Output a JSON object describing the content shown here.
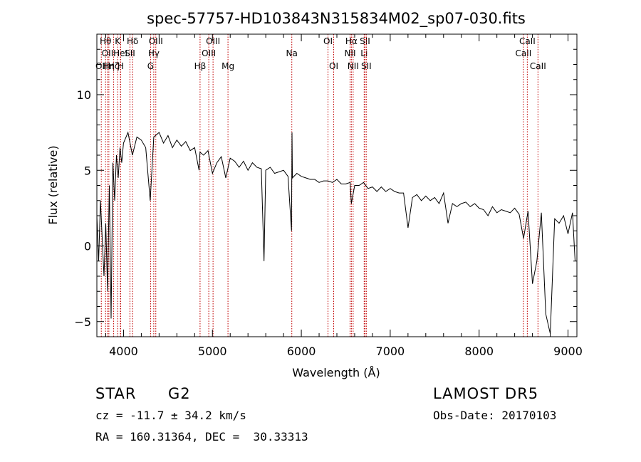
{
  "chart_data": {
    "type": "line",
    "title": "spec-57757-HD103843N315834M02_sp07-030.fits",
    "xlabel": "Wavelength (Å)",
    "ylabel": "Flux (relative)",
    "xlim": [
      3700,
      9100
    ],
    "ylim": [
      -6,
      14
    ],
    "xticks": [
      4000,
      5000,
      6000,
      7000,
      8000,
      9000
    ],
    "yticks": [
      -5,
      0,
      5,
      10
    ],
    "line_color": "#000000",
    "marker_color": "#c00000",
    "spectrum": {
      "name": "",
      "x": [
        3700,
        3720,
        3740,
        3760,
        3780,
        3800,
        3820,
        3840,
        3860,
        3880,
        3900,
        3920,
        3940,
        3960,
        3980,
        4000,
        4050,
        4100,
        4150,
        4200,
        4250,
        4300,
        4340,
        4400,
        4450,
        4500,
        4550,
        4600,
        4650,
        4700,
        4750,
        4800,
        4850,
        4860,
        4900,
        4950,
        5000,
        5050,
        5100,
        5150,
        5200,
        5250,
        5300,
        5350,
        5400,
        5450,
        5500,
        5550,
        5580,
        5600,
        5650,
        5700,
        5750,
        5800,
        5850,
        5890,
        5895,
        5900,
        5950,
        6000,
        6050,
        6100,
        6150,
        6200,
        6250,
        6300,
        6350,
        6400,
        6450,
        6500,
        6550,
        6563,
        6600,
        6650,
        6700,
        6750,
        6800,
        6850,
        6900,
        6950,
        7000,
        7050,
        7100,
        7150,
        7200,
        7250,
        7300,
        7350,
        7400,
        7450,
        7500,
        7550,
        7600,
        7650,
        7700,
        7750,
        7800,
        7850,
        7900,
        7950,
        8000,
        8050,
        8100,
        8150,
        8200,
        8250,
        8300,
        8350,
        8400,
        8450,
        8500,
        8550,
        8600,
        8650,
        8700,
        8750,
        8800,
        8850,
        8900,
        8950,
        9000,
        9050,
        9080
      ],
      "y": [
        2.0,
        -1.0,
        3.0,
        0.5,
        -2.0,
        1.5,
        -3.0,
        4.0,
        -4.8,
        5.5,
        3.0,
        6.0,
        4.5,
        6.5,
        5.5,
        6.8,
        7.5,
        6.0,
        7.2,
        7.0,
        6.5,
        3.0,
        7.2,
        7.5,
        6.8,
        7.3,
        6.5,
        7.0,
        6.6,
        6.9,
        6.3,
        6.5,
        5.0,
        6.2,
        6.0,
        6.3,
        4.8,
        5.5,
        5.9,
        4.5,
        5.8,
        5.6,
        5.2,
        5.6,
        5.0,
        5.5,
        5.2,
        5.1,
        -1.0,
        5.0,
        5.2,
        4.8,
        4.9,
        5.0,
        4.6,
        1.0,
        7.5,
        4.5,
        4.8,
        4.6,
        4.5,
        4.4,
        4.4,
        4.2,
        4.3,
        4.3,
        4.2,
        4.4,
        4.1,
        4.1,
        4.2,
        2.8,
        4.0,
        4.0,
        4.2,
        3.8,
        3.9,
        3.6,
        3.9,
        3.6,
        3.8,
        3.6,
        3.5,
        3.5,
        1.2,
        3.2,
        3.4,
        3.0,
        3.3,
        3.0,
        3.2,
        2.8,
        3.5,
        1.5,
        2.8,
        2.6,
        2.8,
        2.9,
        2.6,
        2.8,
        2.5,
        2.4,
        2.0,
        2.6,
        2.2,
        2.4,
        2.3,
        2.2,
        2.5,
        2.1,
        0.5,
        2.3,
        -2.5,
        -1.0,
        2.2,
        -4.5,
        -5.8,
        1.8,
        1.5,
        2.0,
        0.8,
        2.2,
        -1.0
      ]
    },
    "lines": [
      {
        "x": 3750,
        "label": "OII",
        "row": 2
      },
      {
        "x": 3798,
        "label": "Hθ",
        "row": 0
      },
      {
        "x": 3820,
        "label": "OII",
        "row": 1
      },
      {
        "x": 3835,
        "label": "Hη",
        "row": 2
      },
      {
        "x": 3889,
        "label": "Hζ",
        "row": 2
      },
      {
        "x": 3934,
        "label": "K",
        "row": 0
      },
      {
        "x": 3965,
        "label": "HeI",
        "row": 1
      },
      {
        "x": 3968,
        "label": "H",
        "row": 2
      },
      {
        "x": 4072,
        "label": "SII",
        "row": 1
      },
      {
        "x": 4102,
        "label": "Hδ",
        "row": 0
      },
      {
        "x": 4304,
        "label": "G",
        "row": 2
      },
      {
        "x": 4340,
        "label": "Hγ",
        "row": 1
      },
      {
        "x": 4363,
        "label": "OIII",
        "row": 0
      },
      {
        "x": 4861,
        "label": "Hβ",
        "row": 2
      },
      {
        "x": 4959,
        "label": "OIII",
        "row": 1
      },
      {
        "x": 5007,
        "label": "OIII",
        "row": 0
      },
      {
        "x": 5175,
        "label": "Mg",
        "row": 2
      },
      {
        "x": 5893,
        "label": "Na",
        "row": 1
      },
      {
        "x": 6300,
        "label": "OI",
        "row": 0
      },
      {
        "x": 6364,
        "label": "OI",
        "row": 2
      },
      {
        "x": 6548,
        "label": "NII",
        "row": 1
      },
      {
        "x": 6563,
        "label": "Hα",
        "row": 0
      },
      {
        "x": 6583,
        "label": "NII",
        "row": 2
      },
      {
        "x": 6707,
        "label": "Li",
        "row": 1
      },
      {
        "x": 6716,
        "label": "SII",
        "row": 0
      },
      {
        "x": 6731,
        "label": "SII",
        "row": 2
      },
      {
        "x": 8498,
        "label": "CaII",
        "row": 1
      },
      {
        "x": 8542,
        "label": "CaII",
        "row": 0
      },
      {
        "x": 8662,
        "label": "CaII",
        "row": 2
      }
    ]
  },
  "info": {
    "object_class": "STAR",
    "subclass": "G2",
    "survey": "LAMOST DR5",
    "redshift": "cz = -11.7 ± 34.2 km/s",
    "obs_date": "Obs-Date: 20170103",
    "coords": "RA = 160.31364, DEC =  30.33313"
  }
}
